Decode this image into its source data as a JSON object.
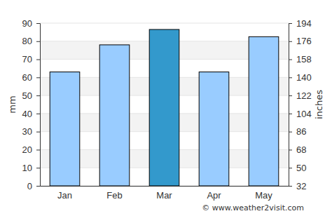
{
  "chart_data": {
    "type": "bar",
    "categories": [
      "Jan",
      "Feb",
      "Mar",
      "Apr",
      "May"
    ],
    "values": [
      63,
      78,
      86.5,
      63,
      82.5
    ],
    "colors": [
      "#99ccff",
      "#99ccff",
      "#3399cc",
      "#99ccff",
      "#99ccff"
    ],
    "y_label": "mm",
    "y2_label": "inches",
    "ylim": [
      0,
      90
    ],
    "yticks": [
      0,
      10,
      20,
      30,
      40,
      50,
      60,
      70,
      80,
      90
    ],
    "y2lim": [
      32,
      194
    ],
    "y2ticks": [
      32,
      50,
      68,
      86,
      104,
      122,
      140,
      158,
      176,
      194
    ],
    "annotation": "© www.weather2visit.com",
    "grid": true
  }
}
